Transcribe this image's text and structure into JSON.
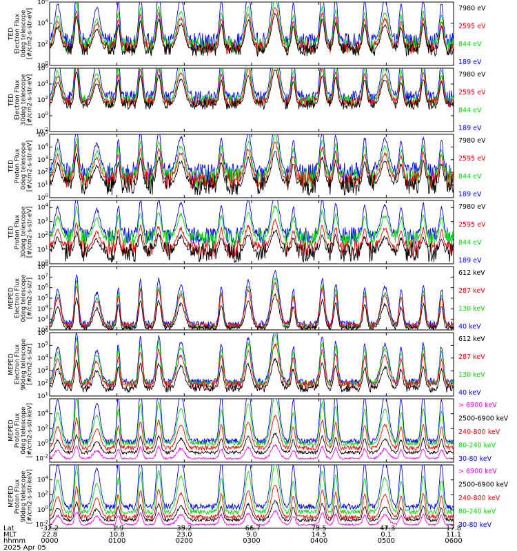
{
  "chart_data": [
    {
      "type": "line",
      "ylabel": [
        "TED",
        "Electron Flux",
        "0deg telescope",
        "[#/cm2-s-str-eV]"
      ],
      "y_ticks": [
        "10^6",
        "10^4",
        "10^2",
        "10^0"
      ],
      "ylim_log10": [
        0,
        6
      ],
      "legend": [
        {
          "label": "7980 eV",
          "color": "#000000"
        },
        {
          "label": "2595 eV",
          "color": "#ff0000"
        },
        {
          "label": "844 eV",
          "color": "#00dd00"
        },
        {
          "label": "189 eV",
          "color": "#0000ff"
        }
      ],
      "series": [
        {
          "name": "189 eV",
          "base": 2.2,
          "noise": 0.9,
          "peak_scale": 1.1
        },
        {
          "name": "844 eV",
          "base": 1.9,
          "noise": 0.7,
          "peak_scale": 0.85
        },
        {
          "name": "2595 eV",
          "base": 1.7,
          "noise": 0.6,
          "peak_scale": 0.75
        },
        {
          "name": "7980 eV",
          "base": 1.5,
          "noise": 0.6,
          "peak_scale": 0.65
        }
      ]
    },
    {
      "type": "line",
      "ylabel": [
        "TED",
        "Electron Flux",
        "30deg telescope",
        "[#/cm2-s-str-eV]"
      ],
      "y_ticks": [
        "10^6",
        "10^4",
        "10^2",
        "10^0",
        "10^-2"
      ],
      "ylim_log10": [
        -2,
        6
      ],
      "legend": [
        {
          "label": "7980 eV",
          "color": "#000000"
        },
        {
          "label": "2595 eV",
          "color": "#ff0000"
        },
        {
          "label": "844 eV",
          "color": "#00dd00"
        },
        {
          "label": "189 eV",
          "color": "#0000ff"
        }
      ],
      "series": [
        {
          "name": "189 eV",
          "base": 2.3,
          "noise": 0.9,
          "peak_scale": 1.1
        },
        {
          "name": "844 eV",
          "base": 1.9,
          "noise": 0.7,
          "peak_scale": 0.85
        },
        {
          "name": "2595 eV",
          "base": 1.7,
          "noise": 0.6,
          "peak_scale": 0.75
        },
        {
          "name": "7980 eV",
          "base": 1.4,
          "noise": 0.6,
          "peak_scale": 0.65
        }
      ]
    },
    {
      "type": "line",
      "ylabel": [
        "TED",
        "Proton Flux",
        "0deg telescope",
        "[#/cm2-s-str-eV]"
      ],
      "y_ticks": [
        "10^5",
        "10^4",
        "10^3",
        "10^2",
        "10^1",
        "10^0"
      ],
      "ylim_log10": [
        0,
        5
      ],
      "legend": [
        {
          "label": "7980 eV",
          "color": "#000000"
        },
        {
          "label": "2595 eV",
          "color": "#ff0000"
        },
        {
          "label": "844 eV",
          "color": "#00dd00"
        },
        {
          "label": "189 eV",
          "color": "#0000ff"
        }
      ],
      "series": [
        {
          "name": "189 eV",
          "base": 2.0,
          "noise": 0.8,
          "peak_scale": 0.9
        },
        {
          "name": "844 eV",
          "base": 1.6,
          "noise": 0.8,
          "peak_scale": 0.8
        },
        {
          "name": "2595 eV",
          "base": 1.4,
          "noise": 0.7,
          "peak_scale": 0.7
        },
        {
          "name": "7980 eV",
          "base": 1.0,
          "noise": 0.8,
          "peak_scale": 0.6
        }
      ]
    },
    {
      "type": "line",
      "ylabel": [
        "TED",
        "Proton Flux",
        "30deg telescope",
        "[#/cm2-s-str-eV]"
      ],
      "y_ticks": [
        "10^4",
        "10^3",
        "10^2",
        "10^1",
        "10^0"
      ],
      "ylim_log10": [
        0,
        4.5
      ],
      "legend": [
        {
          "label": "7980 eV",
          "color": "#000000"
        },
        {
          "label": "2595 eV",
          "color": "#ff0000"
        },
        {
          "label": "844 eV",
          "color": "#00dd00"
        },
        {
          "label": "189 eV",
          "color": "#0000ff"
        }
      ],
      "series": [
        {
          "name": "189 eV",
          "base": 2.0,
          "noise": 0.6,
          "peak_scale": 0.8
        },
        {
          "name": "844 eV",
          "base": 1.8,
          "noise": 0.6,
          "peak_scale": 0.6
        },
        {
          "name": "2595 eV",
          "base": 1.1,
          "noise": 0.6,
          "peak_scale": 0.5
        },
        {
          "name": "7980 eV",
          "base": 0.8,
          "noise": 0.7,
          "peak_scale": 0.4
        }
      ]
    },
    {
      "type": "line",
      "ylabel": [
        "MEPED",
        "Electron Flux",
        "0deg telescope",
        "[#/cm2-s-str]"
      ],
      "y_ticks": [
        "10^8",
        "10^7",
        "10^6",
        "10^5",
        "10^4",
        "10^3",
        "10^2"
      ],
      "ylim_log10": [
        2,
        8
      ],
      "legend": [
        {
          "label": "612 keV",
          "color": "#000000"
        },
        {
          "label": "287 keV",
          "color": "#ff0000"
        },
        {
          "label": "130 keV",
          "color": "#00dd00"
        },
        {
          "label": "40 keV",
          "color": "#0000ff"
        }
      ],
      "series": [
        {
          "name": "40 keV",
          "base": 2.5,
          "noise": 0.4,
          "peak_scale": 1.0
        },
        {
          "name": "130 keV",
          "base": 2.3,
          "noise": 0.2,
          "peak_scale": 0.9
        },
        {
          "name": "287 keV",
          "base": 2.4,
          "noise": 0.3,
          "peak_scale": 0.8
        },
        {
          "name": "612 keV",
          "base": 2.2,
          "noise": 0.2,
          "peak_scale": 0.6
        }
      ]
    },
    {
      "type": "line",
      "ylabel": [
        "MEPED",
        "Electron Flux",
        "90deg telescope",
        "[#/cm2-s-str]"
      ],
      "y_ticks": [
        "10^6",
        "10^5",
        "10^4",
        "10^3",
        "10^2",
        "10^1"
      ],
      "ylim_log10": [
        1,
        6
      ],
      "legend": [
        {
          "label": "612 keV",
          "color": "#000000"
        },
        {
          "label": "287 keV",
          "color": "#ff0000"
        },
        {
          "label": "130 keV",
          "color": "#00dd00"
        },
        {
          "label": "40 keV",
          "color": "#0000ff"
        }
      ],
      "series": [
        {
          "name": "40 keV",
          "base": 2.1,
          "noise": 0.3,
          "peak_scale": 1.0
        },
        {
          "name": "130 keV",
          "base": 2.0,
          "noise": 0.2,
          "peak_scale": 0.9
        },
        {
          "name": "287 keV",
          "base": 1.9,
          "noise": 0.3,
          "peak_scale": 0.75
        },
        {
          "name": "612 keV",
          "base": 1.6,
          "noise": 0.3,
          "peak_scale": 0.55
        }
      ]
    },
    {
      "type": "line",
      "ylabel": [
        "MEPED",
        "Proton Flux",
        "0deg telescope",
        "[#/cm2-s-str-keV]"
      ],
      "y_ticks": [
        "10^4",
        "10^2",
        "10^0",
        "10^-2"
      ],
      "ylim_log10": [
        -2.5,
        6
      ],
      "legend": [
        {
          "label": "> 6900 keV",
          "color": "#ff00ff"
        },
        {
          "label": "2500-6900 keV",
          "color": "#000000"
        },
        {
          "label": "240-800 keV",
          "color": "#ff0000"
        },
        {
          "label": "80-240 keV",
          "color": "#00dd00"
        },
        {
          "label": "30-80 keV",
          "color": "#0000ff"
        }
      ],
      "series": [
        {
          "name": "30-80 keV",
          "base": 0.3,
          "noise": 0.4,
          "peak_scale": 1.2
        },
        {
          "name": "80-240 keV",
          "base": 0.0,
          "noise": 0.3,
          "peak_scale": 0.9
        },
        {
          "name": "240-800 keV",
          "base": -0.6,
          "noise": 0.3,
          "peak_scale": 0.6
        },
        {
          "name": "2500-6900 keV",
          "base": -1.2,
          "noise": 0.2,
          "peak_scale": 0.35
        },
        {
          "name": "> 6900 keV",
          "base": -2.0,
          "noise": 0.1,
          "peak_scale": 0.25
        }
      ]
    },
    {
      "type": "line",
      "ylabel": [
        "MEPED",
        "Proton Flux",
        "90deg telescope",
        "[#/cm2-s-str-keV]"
      ],
      "y_ticks": [
        "10^4",
        "10^2",
        "10^0",
        "10^-2"
      ],
      "ylim_log10": [
        -2.5,
        6
      ],
      "legend": [
        {
          "label": "> 6900 keV",
          "color": "#ff00ff"
        },
        {
          "label": "2500-6900 keV",
          "color": "#000000"
        },
        {
          "label": "240-800 keV",
          "color": "#ff0000"
        },
        {
          "label": "80-240 keV",
          "color": "#00dd00"
        },
        {
          "label": "30-80 keV",
          "color": "#0000ff"
        }
      ],
      "series": [
        {
          "name": "30-80 keV",
          "base": 0.4,
          "noise": 0.4,
          "peak_scale": 1.2
        },
        {
          "name": "80-240 keV",
          "base": -0.3,
          "noise": 0.3,
          "peak_scale": 0.9
        },
        {
          "name": "240-800 keV",
          "base": -1.0,
          "noise": 0.3,
          "peak_scale": 0.6
        },
        {
          "name": "2500-6900 keV",
          "base": -1.4,
          "noise": 0.2,
          "peak_scale": 0.35
        },
        {
          "name": "> 6900 keV",
          "base": -2.0,
          "noise": 0.1,
          "peak_scale": 0.25
        }
      ]
    }
  ],
  "passes_hours": [
    {
      "t": 0.12,
      "w": 0.08,
      "h": 0.55
    },
    {
      "t": 0.4,
      "w": 0.05,
      "h": 0.8
    },
    {
      "t": 0.7,
      "w": 0.09,
      "h": 0.5
    },
    {
      "t": 1.02,
      "w": 0.04,
      "h": 0.6
    },
    {
      "t": 1.35,
      "w": 0.05,
      "h": 0.7
    },
    {
      "t": 1.62,
      "w": 0.06,
      "h": 0.72
    },
    {
      "t": 1.95,
      "w": 0.1,
      "h": 0.62
    },
    {
      "t": 2.55,
      "w": 0.05,
      "h": 0.6
    },
    {
      "t": 2.95,
      "w": 0.08,
      "h": 0.7
    },
    {
      "t": 3.35,
      "w": 0.1,
      "h": 0.85
    },
    {
      "t": 3.62,
      "w": 0.05,
      "h": 0.55
    },
    {
      "t": 4.05,
      "w": 0.06,
      "h": 0.72
    },
    {
      "t": 4.25,
      "w": 0.05,
      "h": 0.65
    },
    {
      "t": 4.68,
      "w": 0.05,
      "h": 0.6
    },
    {
      "t": 4.98,
      "w": 0.1,
      "h": 0.6
    },
    {
      "t": 5.22,
      "w": 0.05,
      "h": 0.55
    },
    {
      "t": 5.55,
      "w": 0.05,
      "h": 0.62
    },
    {
      "t": 5.82,
      "w": 0.05,
      "h": 0.55
    }
  ],
  "x_axis": {
    "xlim_hours": [
      0,
      6
    ],
    "row_labels": [
      "Lat",
      "MLT",
      "hhmm"
    ],
    "tick_hours": [
      0,
      1,
      2,
      3,
      4,
      5,
      6
    ],
    "lat": [
      "-32.2",
      "-1.9",
      "35.2",
      "-66.7",
      "75.5",
      "-47.3",
      "17.8"
    ],
    "mlt": [
      "22.8",
      "10.8",
      "23.0",
      "9.0",
      "14.5",
      "0.1",
      "11.1"
    ],
    "hhmm": [
      "0000",
      "0100",
      "0200",
      "0300",
      "0400",
      "0500",
      "0600"
    ],
    "date": "2025 Apr 05"
  }
}
